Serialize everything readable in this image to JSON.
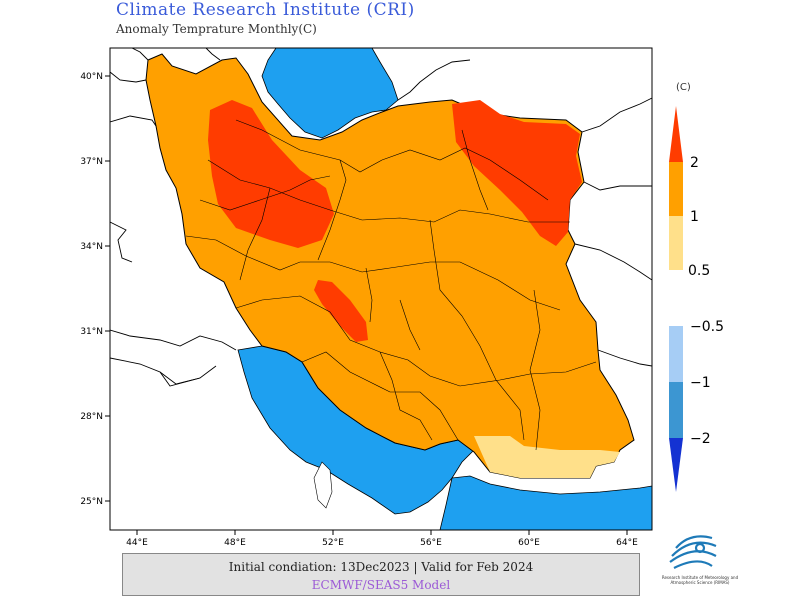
{
  "header": {
    "title": "Climate Research Institute (CRI)",
    "subtitle": "Anomaly Temprature Monthly(C)"
  },
  "map": {
    "lat_ticks": [
      "40°N",
      "37°N",
      "34°N",
      "31°N",
      "28°N",
      "25°N"
    ],
    "lon_ticks": [
      "44°E",
      "48°E",
      "52°E",
      "56°E",
      "60°E",
      "64°E"
    ],
    "colors": {
      "sea": "#1ea0f0",
      "land_outside": "#ffffff",
      "anom_05_1": "#ffe08a",
      "anom_1_2": "#ffa000",
      "anom_gt_2": "#ff3c00",
      "border": "#000000"
    }
  },
  "legend": {
    "unit": "(C)",
    "warm_labels": [
      "2",
      "1",
      "0.5"
    ],
    "cold_labels": [
      "−0.5",
      "−1",
      "−2"
    ],
    "warm_colors": [
      "#ff3c00",
      "#ffa000",
      "#ffe08a"
    ],
    "cold_colors": [
      "#a6cdf5",
      "#3c96d2",
      "#1432d2"
    ]
  },
  "footer": {
    "initial_condition": "Initial condiation: 13Dec2023 | Valid for Feb 2024",
    "model": "ECMWF/SEAS5 Model"
  },
  "logo": {
    "caption": "Research Institute of Meteorology and Atmospheric Science (RIMAS)"
  }
}
